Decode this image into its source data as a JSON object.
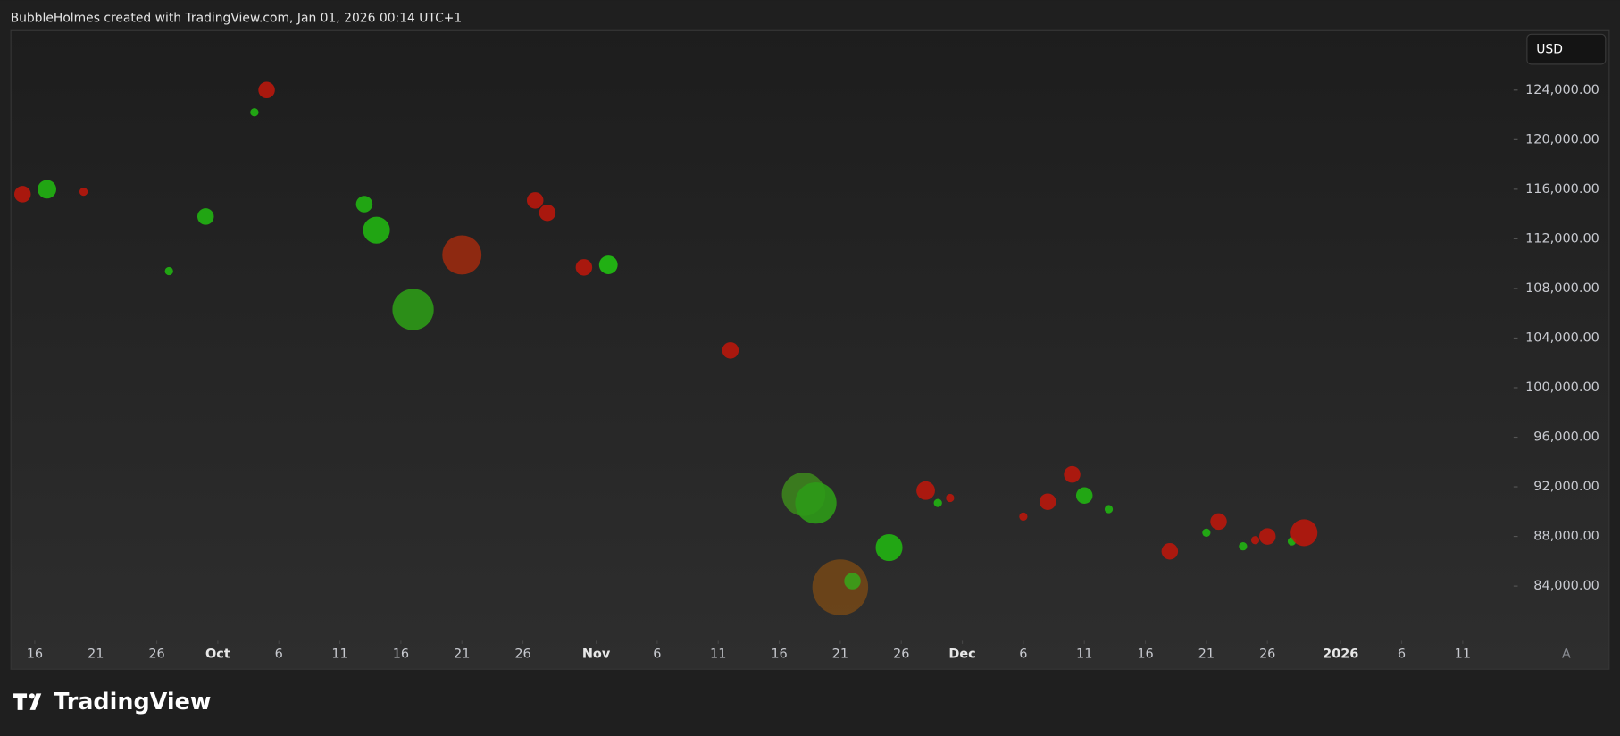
{
  "header": "BubbleHolmes created with TradingView.com, Jan 01, 2026 00:14 UTC+1",
  "brand": "TradingView",
  "currency_button": "USD",
  "auto_scale_button": "A",
  "chart_data": {
    "type": "bubble",
    "x": [
      "2025-09-15",
      "2025-09-17",
      "2025-09-20",
      "2025-09-27",
      "2025-09-30",
      "2025-10-04",
      "2025-10-05",
      "2025-10-13",
      "2025-10-14",
      "2025-10-17",
      "2025-10-21",
      "2025-10-27",
      "2025-10-28",
      "2025-10-31",
      "2025-11-02",
      "2025-11-12",
      "2025-11-18",
      "2025-11-19",
      "2025-11-21",
      "2025-11-22",
      "2025-11-25",
      "2025-11-28",
      "2025-11-29",
      "2025-11-30",
      "2025-12-06",
      "2025-12-08",
      "2025-12-10",
      "2025-12-11",
      "2025-12-13",
      "2025-12-18",
      "2025-12-21",
      "2025-12-22",
      "2025-12-24",
      "2025-12-25",
      "2025-12-26",
      "2025-12-28",
      "2025-12-29"
    ],
    "values": [
      115600,
      116000,
      115800,
      109400,
      113800,
      122200,
      124000,
      114800,
      112700,
      106300,
      110700,
      115100,
      114100,
      109700,
      109900,
      103000,
      91400,
      90700,
      83900,
      84400,
      87100,
      91700,
      90700,
      91100,
      89600,
      90800,
      93000,
      91300,
      90200,
      86800,
      88300,
      89200,
      87200,
      87700,
      88000,
      87600,
      88300
    ],
    "sizes": [
      8,
      9,
      4,
      4,
      8,
      4,
      8,
      8,
      13,
      20,
      19,
      8,
      8,
      8,
      9,
      8,
      21,
      20,
      27,
      8,
      13,
      9,
      4,
      4,
      4,
      8,
      8,
      8,
      4,
      8,
      4,
      8,
      4,
      4,
      8,
      4,
      13
    ],
    "colors": [
      "#b8170ce6",
      "#21b412e6",
      "#b8170ce6",
      "#21b412e6",
      "#21b412e6",
      "#21b412e6",
      "#b8170ce6",
      "#21b412e6",
      "#21b412e6",
      "#2e9a17e6",
      "#9a2a10e6",
      "#b8170ce6",
      "#b8170ce6",
      "#b8170ce6",
      "#21c012e6",
      "#b8170ce6",
      "#3f8e1ccc",
      "#2e9a17e6",
      "#7a4a15cc",
      "#3aa21ae6",
      "#21b412e6",
      "#b8170ce6",
      "#21b412e6",
      "#b8170ce6",
      "#b8170ce6",
      "#b8170ce6",
      "#b8170ce6",
      "#21b412e6",
      "#21b412e6",
      "#b8170ce6",
      "#21b412e6",
      "#b8170ce6",
      "#21b412e6",
      "#b8170ce6",
      "#b8170ce6",
      "#21b412e6",
      "#b8170ce6"
    ],
    "xlim": [
      "2025-09-14",
      "2026-01-15"
    ],
    "xticks": [
      {
        "value": "2025-09-16",
        "label": "16"
      },
      {
        "value": "2025-09-21",
        "label": "21"
      },
      {
        "value": "2025-09-26",
        "label": "26"
      },
      {
        "value": "2025-10-01",
        "label": "Oct"
      },
      {
        "value": "2025-10-06",
        "label": "6"
      },
      {
        "value": "2025-10-11",
        "label": "11"
      },
      {
        "value": "2025-10-16",
        "label": "16"
      },
      {
        "value": "2025-10-21",
        "label": "21"
      },
      {
        "value": "2025-10-26",
        "label": "26"
      },
      {
        "value": "2025-11-01",
        "label": "Nov"
      },
      {
        "value": "2025-11-06",
        "label": "6"
      },
      {
        "value": "2025-11-11",
        "label": "11"
      },
      {
        "value": "2025-11-16",
        "label": "16"
      },
      {
        "value": "2025-11-21",
        "label": "21"
      },
      {
        "value": "2025-11-26",
        "label": "26"
      },
      {
        "value": "2025-12-01",
        "label": "Dec"
      },
      {
        "value": "2025-12-06",
        "label": "6"
      },
      {
        "value": "2025-12-11",
        "label": "11"
      },
      {
        "value": "2025-12-16",
        "label": "16"
      },
      {
        "value": "2025-12-21",
        "label": "21"
      },
      {
        "value": "2025-12-26",
        "label": "26"
      },
      {
        "value": "2026-01-01",
        "label": "2026"
      },
      {
        "value": "2026-01-06",
        "label": "6"
      },
      {
        "value": "2026-01-11",
        "label": "11"
      }
    ],
    "ylim": [
      79750,
      128750
    ],
    "yticks": [
      {
        "value": 84000,
        "label": "84,000.00"
      },
      {
        "value": 88000,
        "label": "88,000.00"
      },
      {
        "value": 92000,
        "label": "92,000.00"
      },
      {
        "value": 96000,
        "label": "96,000.00"
      },
      {
        "value": 100000,
        "label": "100,000.00"
      },
      {
        "value": 104000,
        "label": "104,000.00"
      },
      {
        "value": 108000,
        "label": "108,000.00"
      },
      {
        "value": 112000,
        "label": "112,000.00"
      },
      {
        "value": 116000,
        "label": "116,000.00"
      },
      {
        "value": 120000,
        "label": "120,000.00"
      },
      {
        "value": 124000,
        "label": "124,000.00"
      }
    ]
  }
}
